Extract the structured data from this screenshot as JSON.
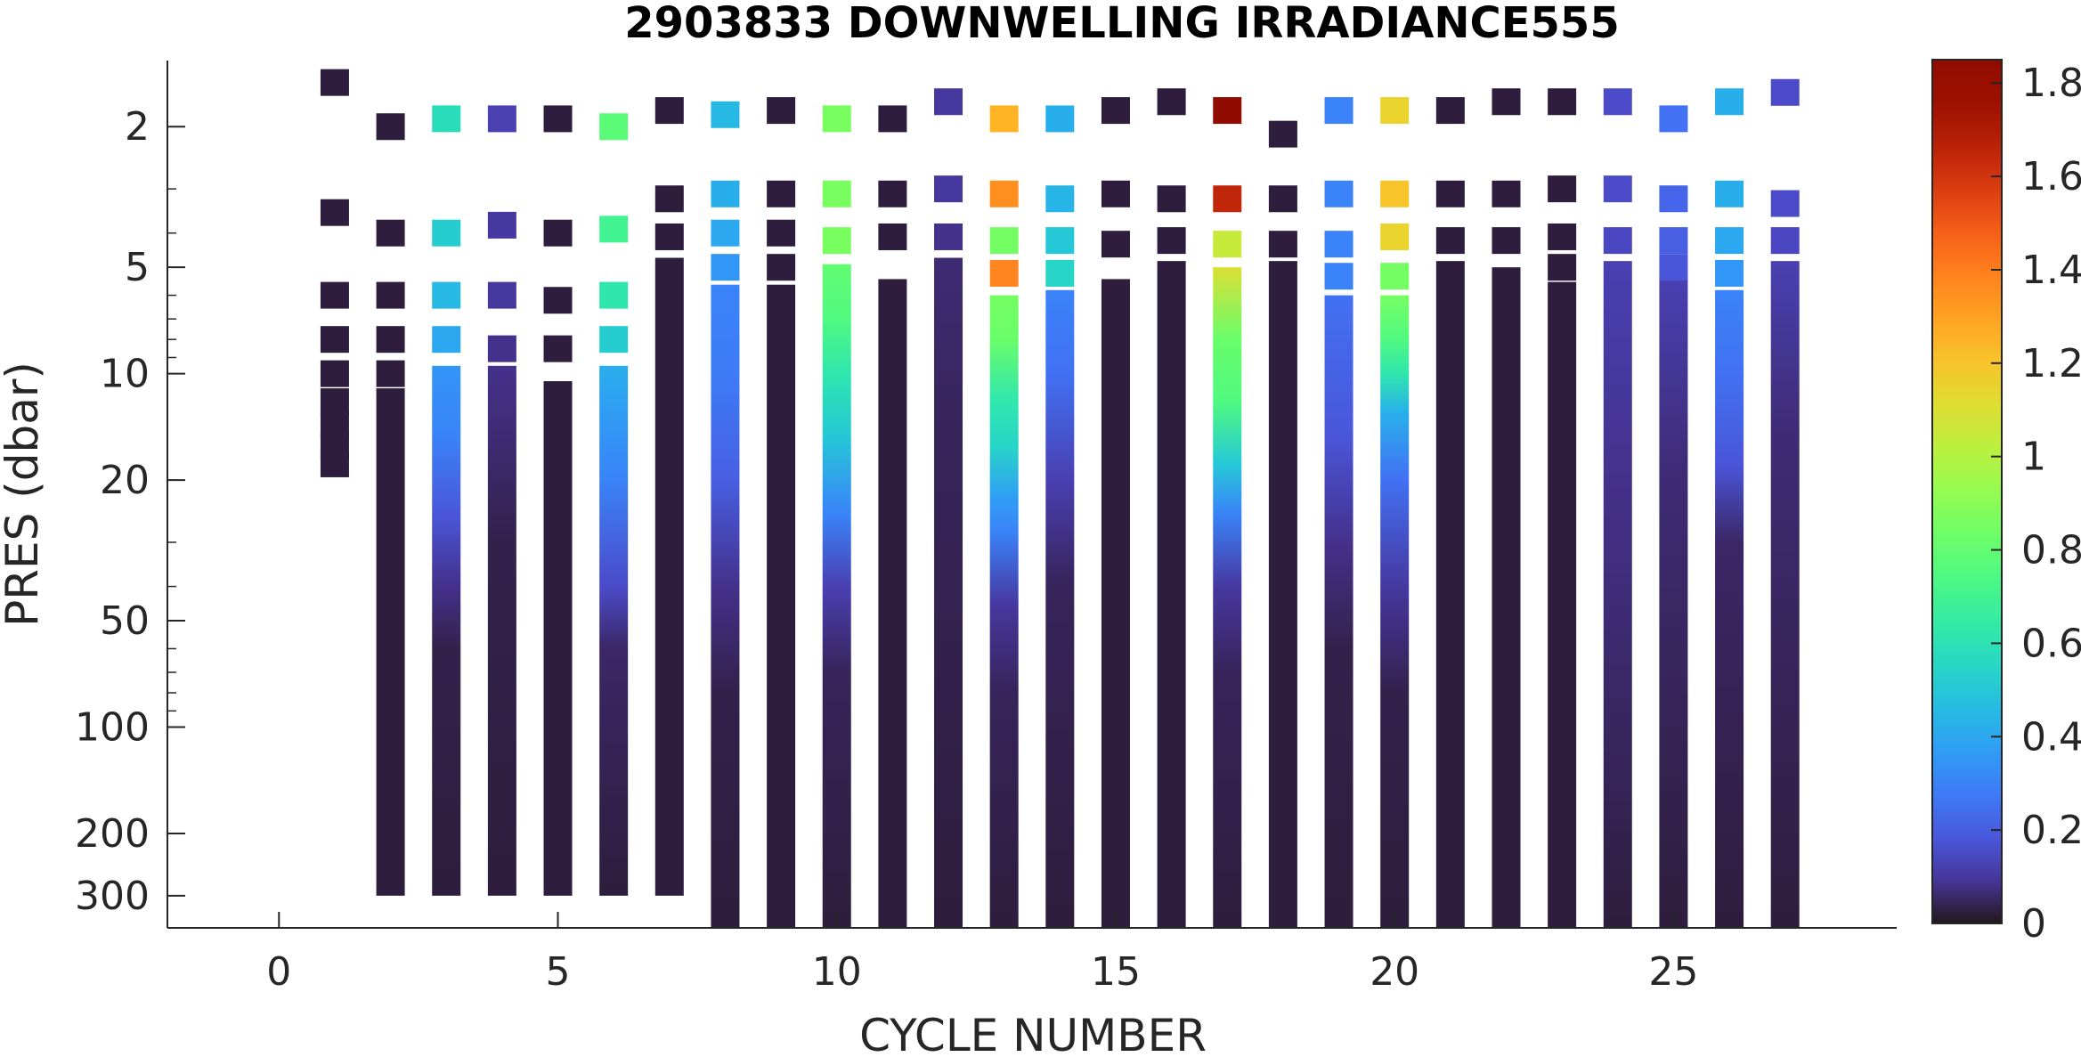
{
  "chart_data": {
    "type": "heatmap",
    "title": "2903833  DOWNWELLING IRRADIANCE555",
    "xlabel": "CYCLE NUMBER",
    "ylabel": "PRES (dbar)",
    "xlim": [
      -2,
      29
    ],
    "ylim": [
      1.3,
      370
    ],
    "yscale": "log",
    "yreverse": true,
    "grid": false,
    "x_ticks": [
      0,
      5,
      10,
      15,
      20,
      25
    ],
    "x_tick_labels": [
      "0",
      "5",
      "10",
      "15",
      "20",
      "25"
    ],
    "y_ticks": [
      2,
      5,
      10,
      20,
      50,
      100,
      200,
      300
    ],
    "y_tick_labels": [
      "2",
      "5",
      "10",
      "20",
      "50",
      "100",
      "200",
      "300"
    ],
    "colorbar": {
      "colormap": "turbo",
      "range": [
        0,
        1.85
      ],
      "ticks": [
        0,
        0.2,
        0.4,
        0.6,
        0.8,
        1,
        1.2,
        1.4,
        1.6,
        1.8
      ],
      "tick_labels": [
        "0",
        "0.2",
        "0.4",
        "0.6",
        "0.8",
        "1",
        "1.2",
        "1.4",
        "1.6",
        "1.8"
      ],
      "position": "right"
    },
    "profiles": [
      {
        "cycle": 1,
        "points": [
          [
            1.5,
            0.02
          ],
          [
            3.5,
            0.02
          ],
          [
            6,
            0.02
          ],
          [
            8,
            0.02
          ],
          [
            10,
            0.02
          ],
          [
            12,
            0.02
          ],
          [
            14,
            0.02
          ],
          [
            16,
            0.02
          ],
          [
            18,
            0.02
          ]
        ]
      },
      {
        "cycle": 2,
        "points": [
          [
            2,
            0.02
          ],
          [
            4,
            0.02
          ],
          [
            6,
            0.02
          ],
          [
            8,
            0.02
          ],
          [
            10,
            0.02
          ]
        ],
        "deep": [
          [
            11,
            0.02
          ],
          [
            300,
            0.02
          ]
        ]
      },
      {
        "cycle": 3,
        "points": [
          [
            1.9,
            0.58
          ],
          [
            4,
            0.52
          ],
          [
            6,
            0.45
          ],
          [
            8,
            0.4
          ]
        ],
        "deep": [
          [
            9.5,
            0.35
          ],
          [
            15,
            0.3
          ],
          [
            25,
            0.18
          ],
          [
            40,
            0.08
          ],
          [
            60,
            0.03
          ],
          [
            300,
            0.02
          ]
        ]
      },
      {
        "cycle": 4,
        "points": [
          [
            1.9,
            0.12
          ],
          [
            3.8,
            0.1
          ],
          [
            6,
            0.1
          ],
          [
            8.5,
            0.08
          ]
        ],
        "deep": [
          [
            9.5,
            0.08
          ],
          [
            15,
            0.06
          ],
          [
            30,
            0.03
          ],
          [
            300,
            0.02
          ]
        ]
      },
      {
        "cycle": 5,
        "points": [
          [
            1.9,
            0.02
          ],
          [
            4,
            0.02
          ],
          [
            6.2,
            0.02
          ],
          [
            8.5,
            0.02
          ]
        ],
        "deep": [
          [
            10.5,
            0.02
          ],
          [
            300,
            0.02
          ]
        ]
      },
      {
        "cycle": 6,
        "points": [
          [
            2,
            0.78
          ],
          [
            3.9,
            0.7
          ],
          [
            6,
            0.62
          ],
          [
            8,
            0.52
          ]
        ],
        "deep": [
          [
            9.5,
            0.42
          ],
          [
            12,
            0.38
          ],
          [
            20,
            0.3
          ],
          [
            40,
            0.15
          ],
          [
            60,
            0.05
          ],
          [
            300,
            0.02
          ]
        ]
      },
      {
        "cycle": 7,
        "points": [
          [
            1.8,
            0.02
          ],
          [
            3.2,
            0.02
          ],
          [
            4.1,
            0.02
          ]
        ],
        "deep": [
          [
            4.7,
            0.02
          ],
          [
            300,
            0.02
          ]
        ]
      },
      {
        "cycle": 8,
        "points": [
          [
            1.85,
            0.45
          ],
          [
            3.1,
            0.42
          ],
          [
            4,
            0.4
          ],
          [
            5,
            0.35
          ]
        ],
        "deep": [
          [
            5.6,
            0.3
          ],
          [
            10,
            0.28
          ],
          [
            20,
            0.2
          ],
          [
            40,
            0.08
          ],
          [
            80,
            0.03
          ],
          [
            370,
            0.02
          ]
        ]
      },
      {
        "cycle": 9,
        "points": [
          [
            1.8,
            0.02
          ],
          [
            3.1,
            0.02
          ],
          [
            4,
            0.02
          ],
          [
            5,
            0.02
          ]
        ],
        "deep": [
          [
            5.6,
            0.02
          ],
          [
            370,
            0.02
          ]
        ]
      },
      {
        "cycle": 10,
        "points": [
          [
            1.9,
            0.86
          ],
          [
            3.1,
            0.86
          ],
          [
            4.2,
            0.86
          ]
        ],
        "deep": [
          [
            4.9,
            0.8
          ],
          [
            7,
            0.75
          ],
          [
            10,
            0.62
          ],
          [
            15,
            0.5
          ],
          [
            25,
            0.3
          ],
          [
            40,
            0.12
          ],
          [
            70,
            0.04
          ],
          [
            370,
            0.02
          ]
        ]
      },
      {
        "cycle": 11,
        "points": [
          [
            1.9,
            0.02
          ],
          [
            3.1,
            0.02
          ],
          [
            4.1,
            0.02
          ]
        ],
        "deep": [
          [
            5.4,
            0.02
          ],
          [
            370,
            0.02
          ]
        ]
      },
      {
        "cycle": 12,
        "points": [
          [
            1.7,
            0.1
          ],
          [
            3,
            0.1
          ],
          [
            4.1,
            0.08
          ]
        ],
        "deep": [
          [
            4.7,
            0.06
          ],
          [
            15,
            0.04
          ],
          [
            370,
            0.02
          ]
        ]
      },
      {
        "cycle": 13,
        "points": [
          [
            1.9,
            1.25
          ],
          [
            3.1,
            1.35
          ],
          [
            4.2,
            0.85
          ],
          [
            5.2,
            1.38
          ]
        ],
        "deep": [
          [
            6,
            0.85
          ],
          [
            8,
            0.82
          ],
          [
            12,
            0.62
          ],
          [
            16,
            0.55
          ],
          [
            22,
            0.38
          ],
          [
            28,
            0.3
          ],
          [
            45,
            0.1
          ],
          [
            80,
            0.04
          ],
          [
            370,
            0.02
          ]
        ]
      },
      {
        "cycle": 14,
        "points": [
          [
            1.9,
            0.42
          ],
          [
            3.2,
            0.44
          ],
          [
            4.2,
            0.5
          ],
          [
            5.2,
            0.55
          ]
        ],
        "deep": [
          [
            5.8,
            0.3
          ],
          [
            10,
            0.25
          ],
          [
            20,
            0.12
          ],
          [
            40,
            0.04
          ],
          [
            370,
            0.02
          ]
        ]
      },
      {
        "cycle": 15,
        "points": [
          [
            1.8,
            0.02
          ],
          [
            3.1,
            0.02
          ],
          [
            4.3,
            0.02
          ]
        ],
        "deep": [
          [
            5.4,
            0.02
          ],
          [
            370,
            0.02
          ]
        ]
      },
      {
        "cycle": 16,
        "points": [
          [
            1.7,
            0.02
          ],
          [
            3.2,
            0.02
          ],
          [
            4.2,
            0.02
          ]
        ],
        "deep": [
          [
            4.8,
            0.02
          ],
          [
            370,
            0.02
          ]
        ]
      },
      {
        "cycle": 17,
        "points": [
          [
            1.8,
            1.85
          ],
          [
            3.2,
            1.65
          ],
          [
            4.3,
            1.05
          ]
        ],
        "deep": [
          [
            5,
            1.1
          ],
          [
            8,
            0.82
          ],
          [
            12,
            0.75
          ],
          [
            18,
            0.5
          ],
          [
            25,
            0.3
          ],
          [
            40,
            0.1
          ],
          [
            70,
            0.04
          ],
          [
            370,
            0.02
          ]
        ]
      },
      {
        "cycle": 18,
        "points": [
          [
            2.1,
            0.02
          ],
          [
            3.2,
            0.02
          ],
          [
            4.3,
            0.02
          ]
        ],
        "deep": [
          [
            4.8,
            0.02
          ],
          [
            370,
            0.02
          ]
        ]
      },
      {
        "cycle": 19,
        "points": [
          [
            1.8,
            0.3
          ],
          [
            3.1,
            0.3
          ],
          [
            4.3,
            0.3
          ],
          [
            5.3,
            0.3
          ]
        ],
        "deep": [
          [
            6,
            0.25
          ],
          [
            15,
            0.18
          ],
          [
            30,
            0.08
          ],
          [
            60,
            0.03
          ],
          [
            370,
            0.02
          ]
        ]
      },
      {
        "cycle": 20,
        "points": [
          [
            1.8,
            1.15
          ],
          [
            3.1,
            1.2
          ],
          [
            4.1,
            1.15
          ],
          [
            5.3,
            0.85
          ]
        ],
        "deep": [
          [
            6,
            0.85
          ],
          [
            8,
            0.75
          ],
          [
            10,
            0.62
          ],
          [
            13,
            0.42
          ],
          [
            20,
            0.25
          ],
          [
            40,
            0.1
          ],
          [
            80,
            0.03
          ],
          [
            370,
            0.02
          ]
        ]
      },
      {
        "cycle": 21,
        "points": [
          [
            1.8,
            0.02
          ],
          [
            3.1,
            0.02
          ],
          [
            4.2,
            0.02
          ]
        ],
        "deep": [
          [
            4.8,
            0.02
          ],
          [
            370,
            0.02
          ]
        ]
      },
      {
        "cycle": 22,
        "points": [
          [
            1.7,
            0.02
          ],
          [
            3.1,
            0.02
          ],
          [
            4.2,
            0.02
          ]
        ],
        "deep": [
          [
            5,
            0.02
          ],
          [
            370,
            0.02
          ]
        ]
      },
      {
        "cycle": 23,
        "points": [
          [
            1.7,
            0.02
          ],
          [
            3,
            0.02
          ],
          [
            4.1,
            0.02
          ],
          [
            5,
            0.02
          ]
        ],
        "deep": [
          [
            5.5,
            0.02
          ],
          [
            370,
            0.02
          ]
        ]
      },
      {
        "cycle": 24,
        "points": [
          [
            1.7,
            0.15
          ],
          [
            3,
            0.15
          ],
          [
            4.2,
            0.14
          ]
        ],
        "deep": [
          [
            4.8,
            0.12
          ],
          [
            20,
            0.08
          ],
          [
            370,
            0.02
          ]
        ]
      },
      {
        "cycle": 25,
        "points": [
          [
            1.9,
            0.25
          ],
          [
            3.2,
            0.22
          ],
          [
            4.2,
            0.2
          ],
          [
            5,
            0.18
          ]
        ],
        "deep": [
          [
            5.4,
            0.12
          ],
          [
            20,
            0.06
          ],
          [
            370,
            0.02
          ]
        ]
      },
      {
        "cycle": 26,
        "points": [
          [
            1.7,
            0.42
          ],
          [
            3.1,
            0.42
          ],
          [
            4.2,
            0.4
          ],
          [
            5.2,
            0.35
          ]
        ],
        "deep": [
          [
            5.8,
            0.3
          ],
          [
            10,
            0.25
          ],
          [
            18,
            0.18
          ],
          [
            30,
            0.05
          ],
          [
            370,
            0.02
          ]
        ]
      },
      {
        "cycle": 27,
        "points": [
          [
            1.6,
            0.15
          ],
          [
            3.3,
            0.15
          ],
          [
            4.2,
            0.14
          ]
        ],
        "deep": [
          [
            4.8,
            0.12
          ],
          [
            15,
            0.06
          ],
          [
            370,
            0.02
          ]
        ]
      }
    ]
  }
}
